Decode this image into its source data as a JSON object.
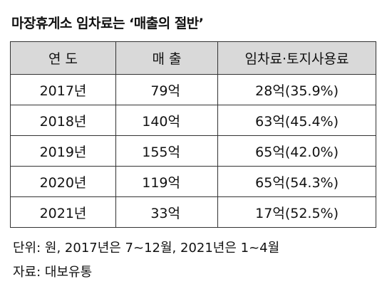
{
  "header": {
    "title": "마장휴게소 임차료는 ‘매출의 절반’"
  },
  "table": {
    "columns": [
      "연 도",
      "매 출",
      "임차료·토지사용료"
    ],
    "rows": [
      [
        "2017년",
        "79억",
        "28억(35.9%)"
      ],
      [
        "2018년",
        "140억",
        "63억(45.4%)"
      ],
      [
        "2019년",
        "155억",
        "65억(42.0%)"
      ],
      [
        "2020년",
        "119억",
        "65억(54.3%)"
      ],
      [
        "2021년",
        "33억",
        "17억(52.5%)"
      ]
    ]
  },
  "notes": [
    "단위: 원, 2017년은 7~12월, 2021년은 1~4월",
    "자료: 대보유통"
  ]
}
